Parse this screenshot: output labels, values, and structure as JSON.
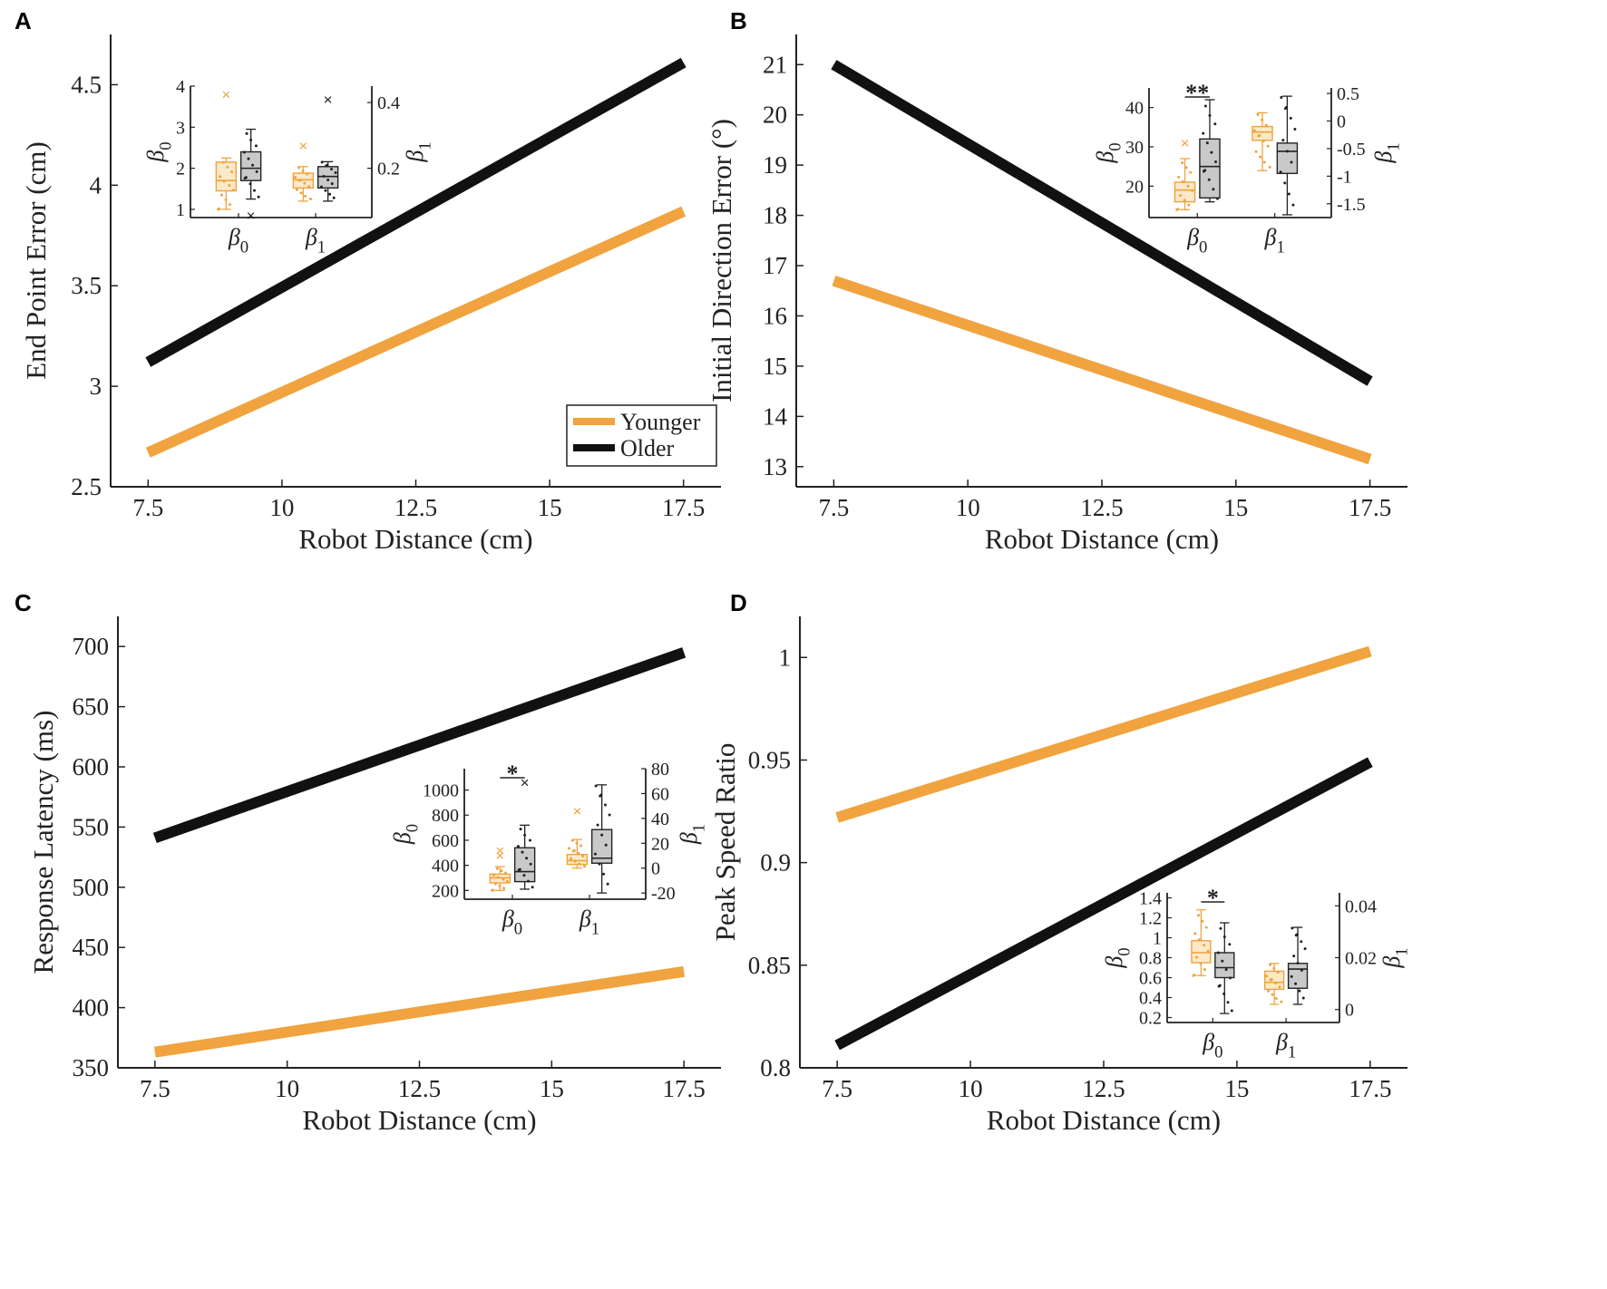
{
  "colors": {
    "younger": "#F0A33E",
    "older": "#111111",
    "younger_box_fill": "#FCE9C9",
    "older_box_fill": "#C9C9C9"
  },
  "chart_data": [
    {
      "panel": "A",
      "type": "line",
      "xlabel": "Robot Distance (cm)",
      "ylabel": "End Point Error (cm)",
      "xlim": [
        6.8,
        18.2
      ],
      "xticks": [
        7.5,
        10,
        12.5,
        15,
        17.5
      ],
      "xtick_labels": [
        "7.5",
        "10",
        "12.5",
        "15",
        "17.5"
      ],
      "ylim": [
        2.5,
        4.75
      ],
      "yticks": [
        2.5,
        3,
        3.5,
        4,
        4.5
      ],
      "ytick_labels": [
        "2.5",
        "3",
        "3.5",
        "4",
        "4.5"
      ],
      "series": [
        {
          "name": "Younger",
          "x": [
            7.5,
            17.5
          ],
          "y": [
            2.67,
            3.87
          ]
        },
        {
          "name": "Older",
          "x": [
            7.5,
            17.5
          ],
          "y": [
            3.12,
            4.61
          ]
        }
      ],
      "legend": {
        "position": "bottom-right",
        "entries": [
          "Younger",
          "Older"
        ]
      },
      "inset": {
        "position": "top-left",
        "categories": [
          "β0",
          "β1"
        ],
        "left_axis": {
          "label": "β0",
          "ylim": [
            0.8,
            4.0
          ],
          "ticks": [
            1,
            2,
            3,
            4
          ],
          "tick_labels": [
            "1",
            "2",
            "3",
            "4"
          ]
        },
        "right_axis": {
          "label": "β1",
          "ylim": [
            0.05,
            0.45
          ],
          "ticks": [
            0.2,
            0.4
          ],
          "tick_labels": [
            "0.2",
            "0.4"
          ]
        },
        "boxes": [
          {
            "category": "β0",
            "group": "Younger",
            "axis": "left",
            "min": 1.0,
            "q1": 1.45,
            "median": 1.7,
            "q3": 2.15,
            "max": 2.25,
            "outliers": [
              3.8
            ]
          },
          {
            "category": "β0",
            "group": "Older",
            "axis": "left",
            "min": 1.25,
            "q1": 1.7,
            "median": 2.0,
            "q3": 2.4,
            "max": 2.95,
            "outliers": [
              0.85
            ]
          },
          {
            "category": "β1",
            "group": "Younger",
            "axis": "right",
            "min": 0.1,
            "q1": 0.14,
            "median": 0.165,
            "q3": 0.185,
            "max": 0.205,
            "outliers": [
              0.27
            ]
          },
          {
            "category": "β1",
            "group": "Older",
            "axis": "right",
            "min": 0.1,
            "q1": 0.14,
            "median": 0.175,
            "q3": 0.205,
            "max": 0.22,
            "outliers": [
              0.41
            ]
          }
        ],
        "significance": []
      }
    },
    {
      "panel": "B",
      "type": "line",
      "xlabel": "Robot Distance (cm)",
      "ylabel": "Initial Direction Error (°)",
      "xlim": [
        6.8,
        18.2
      ],
      "xticks": [
        7.5,
        10,
        12.5,
        15,
        17.5
      ],
      "xtick_labels": [
        "7.5",
        "10",
        "12.5",
        "15",
        "17.5"
      ],
      "ylim": [
        12.6,
        21.6
      ],
      "yticks": [
        13,
        14,
        15,
        16,
        17,
        18,
        19,
        20,
        21
      ],
      "ytick_labels": [
        "13",
        "14",
        "15",
        "16",
        "17",
        "18",
        "19",
        "20",
        "21"
      ],
      "series": [
        {
          "name": "Younger",
          "x": [
            7.5,
            17.5
          ],
          "y": [
            16.7,
            13.15
          ]
        },
        {
          "name": "Older",
          "x": [
            7.5,
            17.5
          ],
          "y": [
            21.0,
            14.7
          ]
        }
      ],
      "inset": {
        "position": "top-right",
        "categories": [
          "β0",
          "β1"
        ],
        "left_axis": {
          "label": "β0",
          "ylim": [
            12,
            45
          ],
          "ticks": [
            20,
            30,
            40
          ],
          "tick_labels": [
            "20",
            "30",
            "40"
          ]
        },
        "right_axis": {
          "label": "β1",
          "ylim": [
            -1.75,
            0.6
          ],
          "ticks": [
            -1.5,
            -1,
            -0.5,
            0,
            0.5
          ],
          "tick_labels": [
            "-1.5",
            "-1",
            "-0.5",
            "0",
            "0.5"
          ]
        },
        "boxes": [
          {
            "category": "β0",
            "group": "Younger",
            "axis": "left",
            "min": 14,
            "q1": 16,
            "median": 19,
            "q3": 21,
            "max": 27,
            "outliers": [
              31
            ]
          },
          {
            "category": "β0",
            "group": "Older",
            "axis": "left",
            "min": 16,
            "q1": 17,
            "median": 25,
            "q3": 32,
            "max": 42,
            "outliers": []
          },
          {
            "category": "β1",
            "group": "Younger",
            "axis": "right",
            "min": -0.9,
            "q1": -0.35,
            "median": -0.2,
            "q3": -0.1,
            "max": 0.15,
            "outliers": []
          },
          {
            "category": "β1",
            "group": "Older",
            "axis": "right",
            "min": -1.7,
            "q1": -0.95,
            "median": -0.55,
            "q3": -0.4,
            "max": 0.45,
            "outliers": []
          }
        ],
        "significance": [
          {
            "category": "β0",
            "label": "**"
          }
        ]
      }
    },
    {
      "panel": "C",
      "type": "line",
      "xlabel": "Robot Distance (cm)",
      "ylabel": "Response Latency (ms)",
      "xlim": [
        6.8,
        18.2
      ],
      "xticks": [
        7.5,
        10,
        12.5,
        15,
        17.5
      ],
      "xtick_labels": [
        "7.5",
        "10",
        "12.5",
        "15",
        "17.5"
      ],
      "ylim": [
        350,
        725
      ],
      "yticks": [
        350,
        400,
        450,
        500,
        550,
        600,
        650,
        700
      ],
      "ytick_labels": [
        "350",
        "400",
        "450",
        "500",
        "550",
        "600",
        "650",
        "700"
      ],
      "series": [
        {
          "name": "Younger",
          "x": [
            7.5,
            17.5
          ],
          "y": [
            363,
            430
          ]
        },
        {
          "name": "Older",
          "x": [
            7.5,
            17.5
          ],
          "y": [
            541,
            695
          ]
        }
      ],
      "inset": {
        "position": "middle-right",
        "categories": [
          "β0",
          "β1"
        ],
        "left_axis": {
          "label": "β0",
          "ylim": [
            130,
            1170
          ],
          "ticks": [
            200,
            400,
            600,
            800,
            1000
          ],
          "tick_labels": [
            "200",
            "400",
            "600",
            "800",
            "1000"
          ]
        },
        "right_axis": {
          "label": "β1",
          "ylim": [
            -25,
            80
          ],
          "ticks": [
            -20,
            0,
            20,
            40,
            60,
            80
          ],
          "tick_labels": [
            "-20",
            "0",
            "20",
            "40",
            "60",
            "80"
          ]
        },
        "boxes": [
          {
            "category": "β0",
            "group": "Younger",
            "axis": "left",
            "min": 200,
            "q1": 260,
            "median": 300,
            "q3": 330,
            "max": 390,
            "outliers": [
              480,
              520
            ]
          },
          {
            "category": "β0",
            "group": "Older",
            "axis": "left",
            "min": 210,
            "q1": 270,
            "median": 350,
            "q3": 540,
            "max": 720,
            "outliers": [
              1060
            ]
          },
          {
            "category": "β1",
            "group": "Younger",
            "axis": "right",
            "min": 0,
            "q1": 3,
            "median": 6,
            "q3": 11,
            "max": 23,
            "outliers": [
              46
            ]
          },
          {
            "category": "β1",
            "group": "Older",
            "axis": "right",
            "min": -20,
            "q1": 4,
            "median": 8,
            "q3": 31,
            "max": 67,
            "outliers": []
          }
        ],
        "significance": [
          {
            "category": "β0",
            "label": "*"
          }
        ]
      }
    },
    {
      "panel": "D",
      "type": "line",
      "xlabel": "Robot Distance (cm)",
      "ylabel": "Peak Speed Ratio",
      "xlim": [
        6.8,
        18.2
      ],
      "xticks": [
        7.5,
        10,
        12.5,
        15,
        17.5
      ],
      "xtick_labels": [
        "7.5",
        "10",
        "12.5",
        "15",
        "17.5"
      ],
      "ylim": [
        0.8,
        1.02
      ],
      "yticks": [
        0.8,
        0.85,
        0.9,
        0.95,
        1.0
      ],
      "ytick_labels": [
        "0.8",
        "0.85",
        "0.9",
        "0.95",
        "1"
      ],
      "series": [
        {
          "name": "Younger",
          "x": [
            7.5,
            17.5
          ],
          "y": [
            0.922,
            1.003
          ]
        },
        {
          "name": "Older",
          "x": [
            7.5,
            17.5
          ],
          "y": [
            0.811,
            0.949
          ]
        }
      ],
      "inset": {
        "position": "bottom-right",
        "categories": [
          "β0",
          "β1"
        ],
        "left_axis": {
          "label": "β0",
          "ylim": [
            0.15,
            1.45
          ],
          "ticks": [
            0.2,
            0.4,
            0.6,
            0.8,
            1.0,
            1.2,
            1.4
          ],
          "tick_labels": [
            "0.2",
            "0.4",
            "0.6",
            "0.8",
            "1",
            "1.2",
            "1.4"
          ]
        },
        "right_axis": {
          "label": "β1",
          "ylim": [
            -0.005,
            0.045
          ],
          "ticks": [
            0,
            0.02,
            0.04
          ],
          "tick_labels": [
            "0",
            "0.02",
            "0.04"
          ]
        },
        "boxes": [
          {
            "category": "β0",
            "group": "Younger",
            "axis": "left",
            "min": 0.62,
            "q1": 0.75,
            "median": 0.85,
            "q3": 0.97,
            "max": 1.28,
            "outliers": []
          },
          {
            "category": "β0",
            "group": "Older",
            "axis": "left",
            "min": 0.24,
            "q1": 0.6,
            "median": 0.7,
            "q3": 0.85,
            "max": 1.15,
            "outliers": []
          },
          {
            "category": "β1",
            "group": "Younger",
            "axis": "right",
            "min": 0.002,
            "q1": 0.0078,
            "median": 0.0105,
            "q3": 0.0148,
            "max": 0.0178,
            "outliers": []
          },
          {
            "category": "β1",
            "group": "Older",
            "axis": "right",
            "min": 0.002,
            "q1": 0.0082,
            "median": 0.0156,
            "q3": 0.0178,
            "max": 0.0317,
            "outliers": []
          }
        ],
        "significance": [
          {
            "category": "β0",
            "label": "*"
          }
        ]
      }
    }
  ]
}
